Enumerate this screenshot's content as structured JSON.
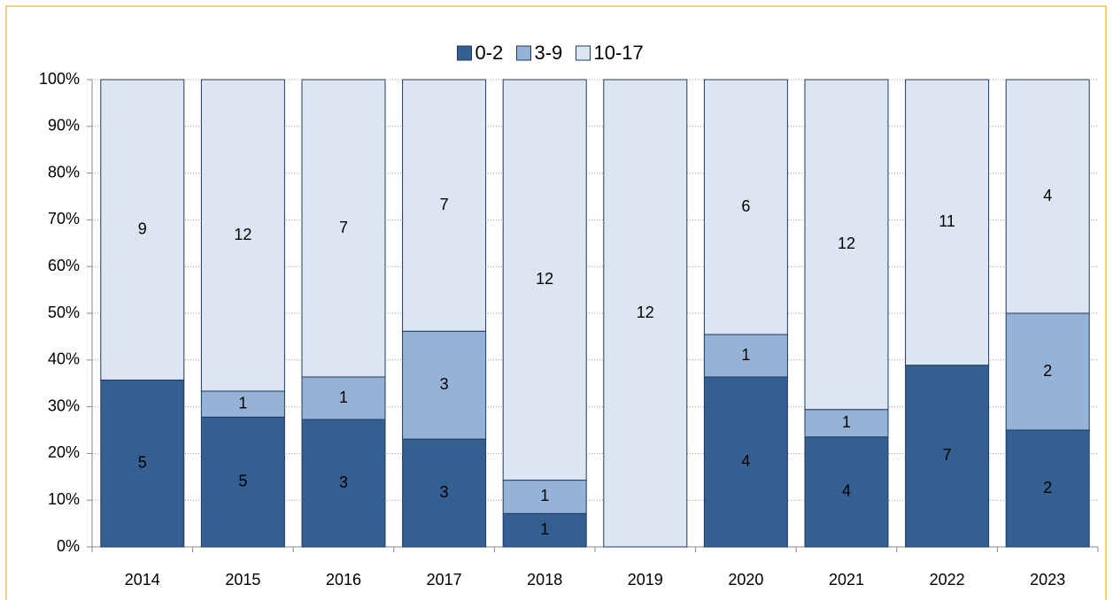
{
  "chart_data": {
    "type": "bar",
    "stacking": "percent",
    "categories": [
      "2014",
      "2015",
      "2016",
      "2017",
      "2018",
      "2019",
      "2020",
      "2021",
      "2022",
      "2023"
    ],
    "series": [
      {
        "name": "0-2",
        "color": "#365f91",
        "label_color": "#ffffff",
        "values": [
          5,
          5,
          3,
          3,
          1,
          0,
          4,
          4,
          7,
          2
        ]
      },
      {
        "name": "3-9",
        "color": "#95b3d7",
        "label_color": "#000000",
        "values": [
          0,
          1,
          1,
          3,
          1,
          0,
          1,
          1,
          0,
          2
        ]
      },
      {
        "name": "10-17",
        "color": "#dce6f2",
        "label_color": "#000000",
        "values": [
          9,
          12,
          7,
          7,
          12,
          12,
          6,
          12,
          11,
          4
        ]
      }
    ],
    "ylim": [
      0,
      100
    ],
    "yticks": [
      {
        "value": 0,
        "label": "0%"
      },
      {
        "value": 10,
        "label": "10%"
      },
      {
        "value": 20,
        "label": "20%"
      },
      {
        "value": 30,
        "label": "30%"
      },
      {
        "value": 40,
        "label": "40%"
      },
      {
        "value": 50,
        "label": "50%"
      },
      {
        "value": 60,
        "label": "60%"
      },
      {
        "value": 70,
        "label": "70%"
      },
      {
        "value": 80,
        "label": "80%"
      },
      {
        "value": 90,
        "label": "90%"
      },
      {
        "value": 100,
        "label": "100%"
      }
    ],
    "grid": true,
    "legend": "top"
  }
}
